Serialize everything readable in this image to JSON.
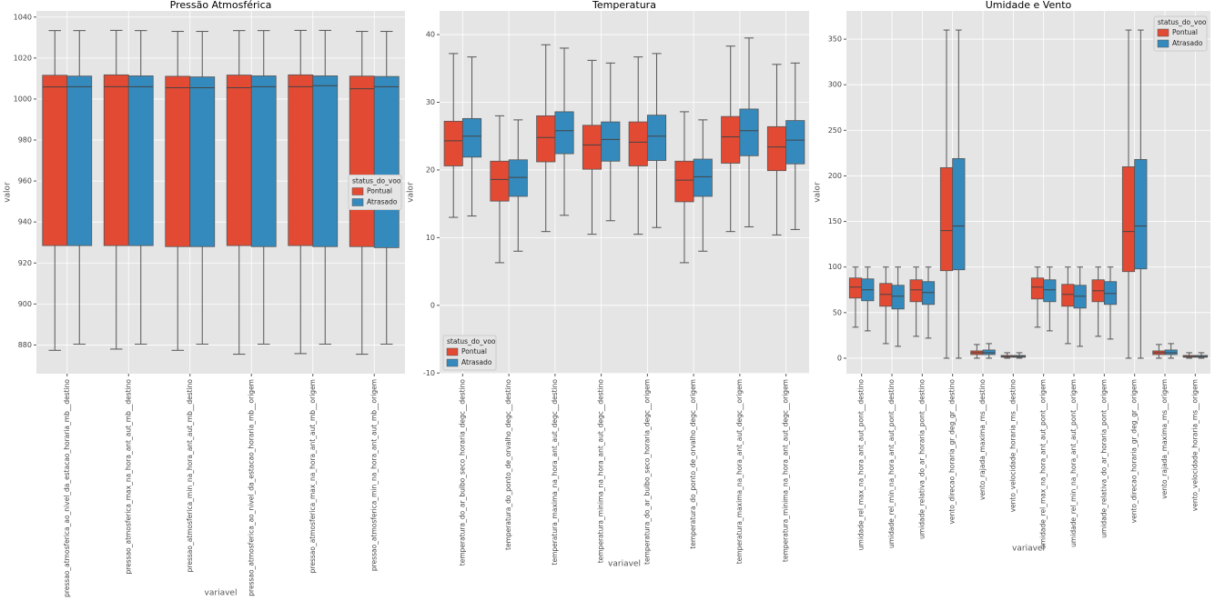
{
  "chart_data": [
    {
      "type": "box",
      "title": "Pressão Atmosférica",
      "x_label": "variavel",
      "y_label": "valor",
      "legend_title": "status_do_voo",
      "legend": "center right",
      "grid": true,
      "ylim": [
        866,
        1043
      ],
      "yticks": [
        880,
        900,
        920,
        940,
        960,
        980,
        1000,
        1020,
        1040
      ],
      "categories": [
        "pressao_atmosferica_ao_nivel_da_estacao_horaria_mb__destino",
        "pressao_atmosferica_max_na_hora_ant_aut_mb__destino",
        "pressao_atmosferica_min_na_hora_ant_aut_mb__destino",
        "pressao_atmosferica_ao_nivel_da_estacao_horaria_mb__origem",
        "pressao_atmosferica_max_na_hora_ant_aut_mb__origem",
        "pressao_atmosferica_min_na_hora_ant_aut_mb__origem"
      ],
      "series": [
        {
          "name": "Pontual",
          "color": "#e24a33",
          "values": [
            [
              877.4,
              928.5,
              1005.9,
              1011.6,
              1033.4
            ],
            [
              878,
              928.5,
              1006,
              1011.8,
              1033.5
            ],
            [
              877.4,
              928,
              1005.5,
              1011.1,
              1033
            ],
            [
              875.5,
              928.5,
              1005.5,
              1011.7,
              1033.4
            ],
            [
              875.8,
              928.5,
              1006,
              1011.8,
              1033.5
            ],
            [
              875.5,
              928,
              1005,
              1011.2,
              1033
            ]
          ]
        },
        {
          "name": "Atrasado",
          "color": "#348abd",
          "values": [
            [
              880.4,
              928.5,
              1006,
              1011.2,
              1033.4
            ],
            [
              880.4,
              928.5,
              1006,
              1011.3,
              1033.4
            ],
            [
              880.4,
              928,
              1005.5,
              1010.8,
              1033
            ],
            [
              880.4,
              928,
              1006,
              1011.3,
              1033.4
            ],
            [
              880.4,
              928,
              1006.5,
              1011.3,
              1033.5
            ],
            [
              880.4,
              927.5,
              1006,
              1011,
              1033
            ]
          ]
        }
      ]
    },
    {
      "type": "box",
      "title": "Temperatura",
      "x_label": "variavel",
      "y_label": "valor",
      "legend_title": "status_do_voo",
      "legend": "lower left",
      "grid": true,
      "ylim": [
        -10.1,
        43.5
      ],
      "yticks": [
        -10,
        0,
        10,
        20,
        30,
        40
      ],
      "categories": [
        "temperatura_do_ar_bulbo_seco_horaria_degc__destino",
        "temperatura_do_ponto_de_orvalho_degc__destino",
        "temperatura_maxima_na_hora_ant_aut_degc__destino",
        "temperatura_minima_na_hora_ant_aut_degc__destino",
        "temperatura_do_ar_bulbo_seco_horaria_degc__origem",
        "temperatura_do_ponto_de_orvalho_degc__origem",
        "temperatura_maxima_na_hora_ant_aut_degc__origem",
        "temperatura_minima_na_hora_ant_aut_degc__origem"
      ],
      "series": [
        {
          "name": "Pontual",
          "color": "#e24a33",
          "values": [
            [
              13.0,
              20.6,
              24.3,
              27.2,
              37.2
            ],
            [
              6.3,
              15.4,
              18.6,
              21.3,
              28.0
            ],
            [
              10.9,
              21.2,
              24.8,
              28.0,
              38.5
            ],
            [
              10.5,
              20.1,
              23.7,
              26.6,
              36.2
            ],
            [
              10.5,
              20.6,
              24.1,
              27.1,
              36.7
            ],
            [
              6.3,
              15.3,
              18.5,
              21.3,
              28.6
            ],
            [
              10.9,
              21.0,
              24.9,
              27.9,
              38.3
            ],
            [
              10.4,
              19.9,
              23.4,
              26.4,
              35.6
            ]
          ]
        },
        {
          "name": "Atrasado",
          "color": "#348abd",
          "values": [
            [
              13.2,
              21.9,
              25.0,
              27.6,
              36.7
            ],
            [
              8.0,
              16.1,
              18.9,
              21.5,
              27.4
            ],
            [
              13.3,
              22.4,
              25.8,
              28.6,
              38.0
            ],
            [
              12.5,
              21.3,
              24.5,
              27.1,
              35.8
            ],
            [
              11.5,
              21.4,
              25.0,
              28.1,
              37.2
            ],
            [
              8.0,
              16.1,
              19.0,
              21.6,
              27.4
            ],
            [
              11.6,
              22.1,
              25.8,
              29.0,
              39.5
            ],
            [
              11.2,
              20.9,
              24.4,
              27.3,
              35.8
            ]
          ]
        }
      ]
    },
    {
      "type": "box",
      "title": "Umidade e Vento",
      "x_label": "variavel",
      "y_label": "valor",
      "legend_title": "status_do_voo",
      "legend": "upper right",
      "grid": true,
      "ylim": [
        -17,
        381
      ],
      "yticks": [
        0,
        50,
        100,
        150,
        200,
        250,
        300,
        350
      ],
      "categories": [
        "umidade_rel_max_na_hora_ant_aut_pont__destino",
        "umidade_rel_min_na_hora_ant_aut_pont__destino",
        "umidade_relativa_do_ar_horaria_pont__destino",
        "vento_direcao_horaria_gr_deg_gr__destino",
        "vento_rajada_maxima_ms__destino",
        "vento_velocidade_horaria_ms__destino",
        "umidade_rel_max_na_hora_ant_aut_pont__origem",
        "umidade_rel_min_na_hora_ant_aut_pont__origem",
        "umidade_relativa_do_ar_horaria_pont__origem",
        "vento_direcao_horaria_gr_deg_gr__origem",
        "vento_rajada_maxima_ms__origem",
        "vento_velocidade_horaria_ms__origem"
      ],
      "series": [
        {
          "name": "Pontual",
          "color": "#e24a33",
          "values": [
            [
              34,
              66,
              78,
              88,
              100
            ],
            [
              16,
              57,
              70,
              82,
              100
            ],
            [
              24,
              62,
              75,
              86,
              100
            ],
            [
              0,
              96,
              140,
              209,
              360
            ],
            [
              0,
              4,
              6,
              8,
              15
            ],
            [
              0,
              1,
              2,
              3,
              6
            ],
            [
              34,
              65,
              78,
              88,
              100
            ],
            [
              16,
              57,
              70,
              81,
              100
            ],
            [
              24,
              62,
              74,
              86,
              100
            ],
            [
              0,
              95,
              139,
              210,
              360
            ],
            [
              0,
              4,
              6,
              8,
              15
            ],
            [
              0,
              1,
              2,
              3,
              6
            ]
          ]
        },
        {
          "name": "Atrasado",
          "color": "#348abd",
          "values": [
            [
              30,
              63,
              75,
              87,
              100
            ],
            [
              13,
              54,
              68,
              80,
              100
            ],
            [
              22,
              59,
              72,
              84,
              100
            ],
            [
              0,
              97,
              145,
              219,
              360
            ],
            [
              0,
              4,
              6,
              9,
              16
            ],
            [
              0,
              1,
              2,
              3,
              6
            ],
            [
              30,
              62,
              75,
              86,
              100
            ],
            [
              13,
              55,
              68,
              80,
              100
            ],
            [
              21,
              59,
              71,
              84,
              100
            ],
            [
              0,
              98,
              145,
              218,
              360
            ],
            [
              0,
              4,
              6,
              9,
              16
            ],
            [
              0,
              1,
              2,
              3,
              6
            ]
          ]
        }
      ]
    }
  ]
}
